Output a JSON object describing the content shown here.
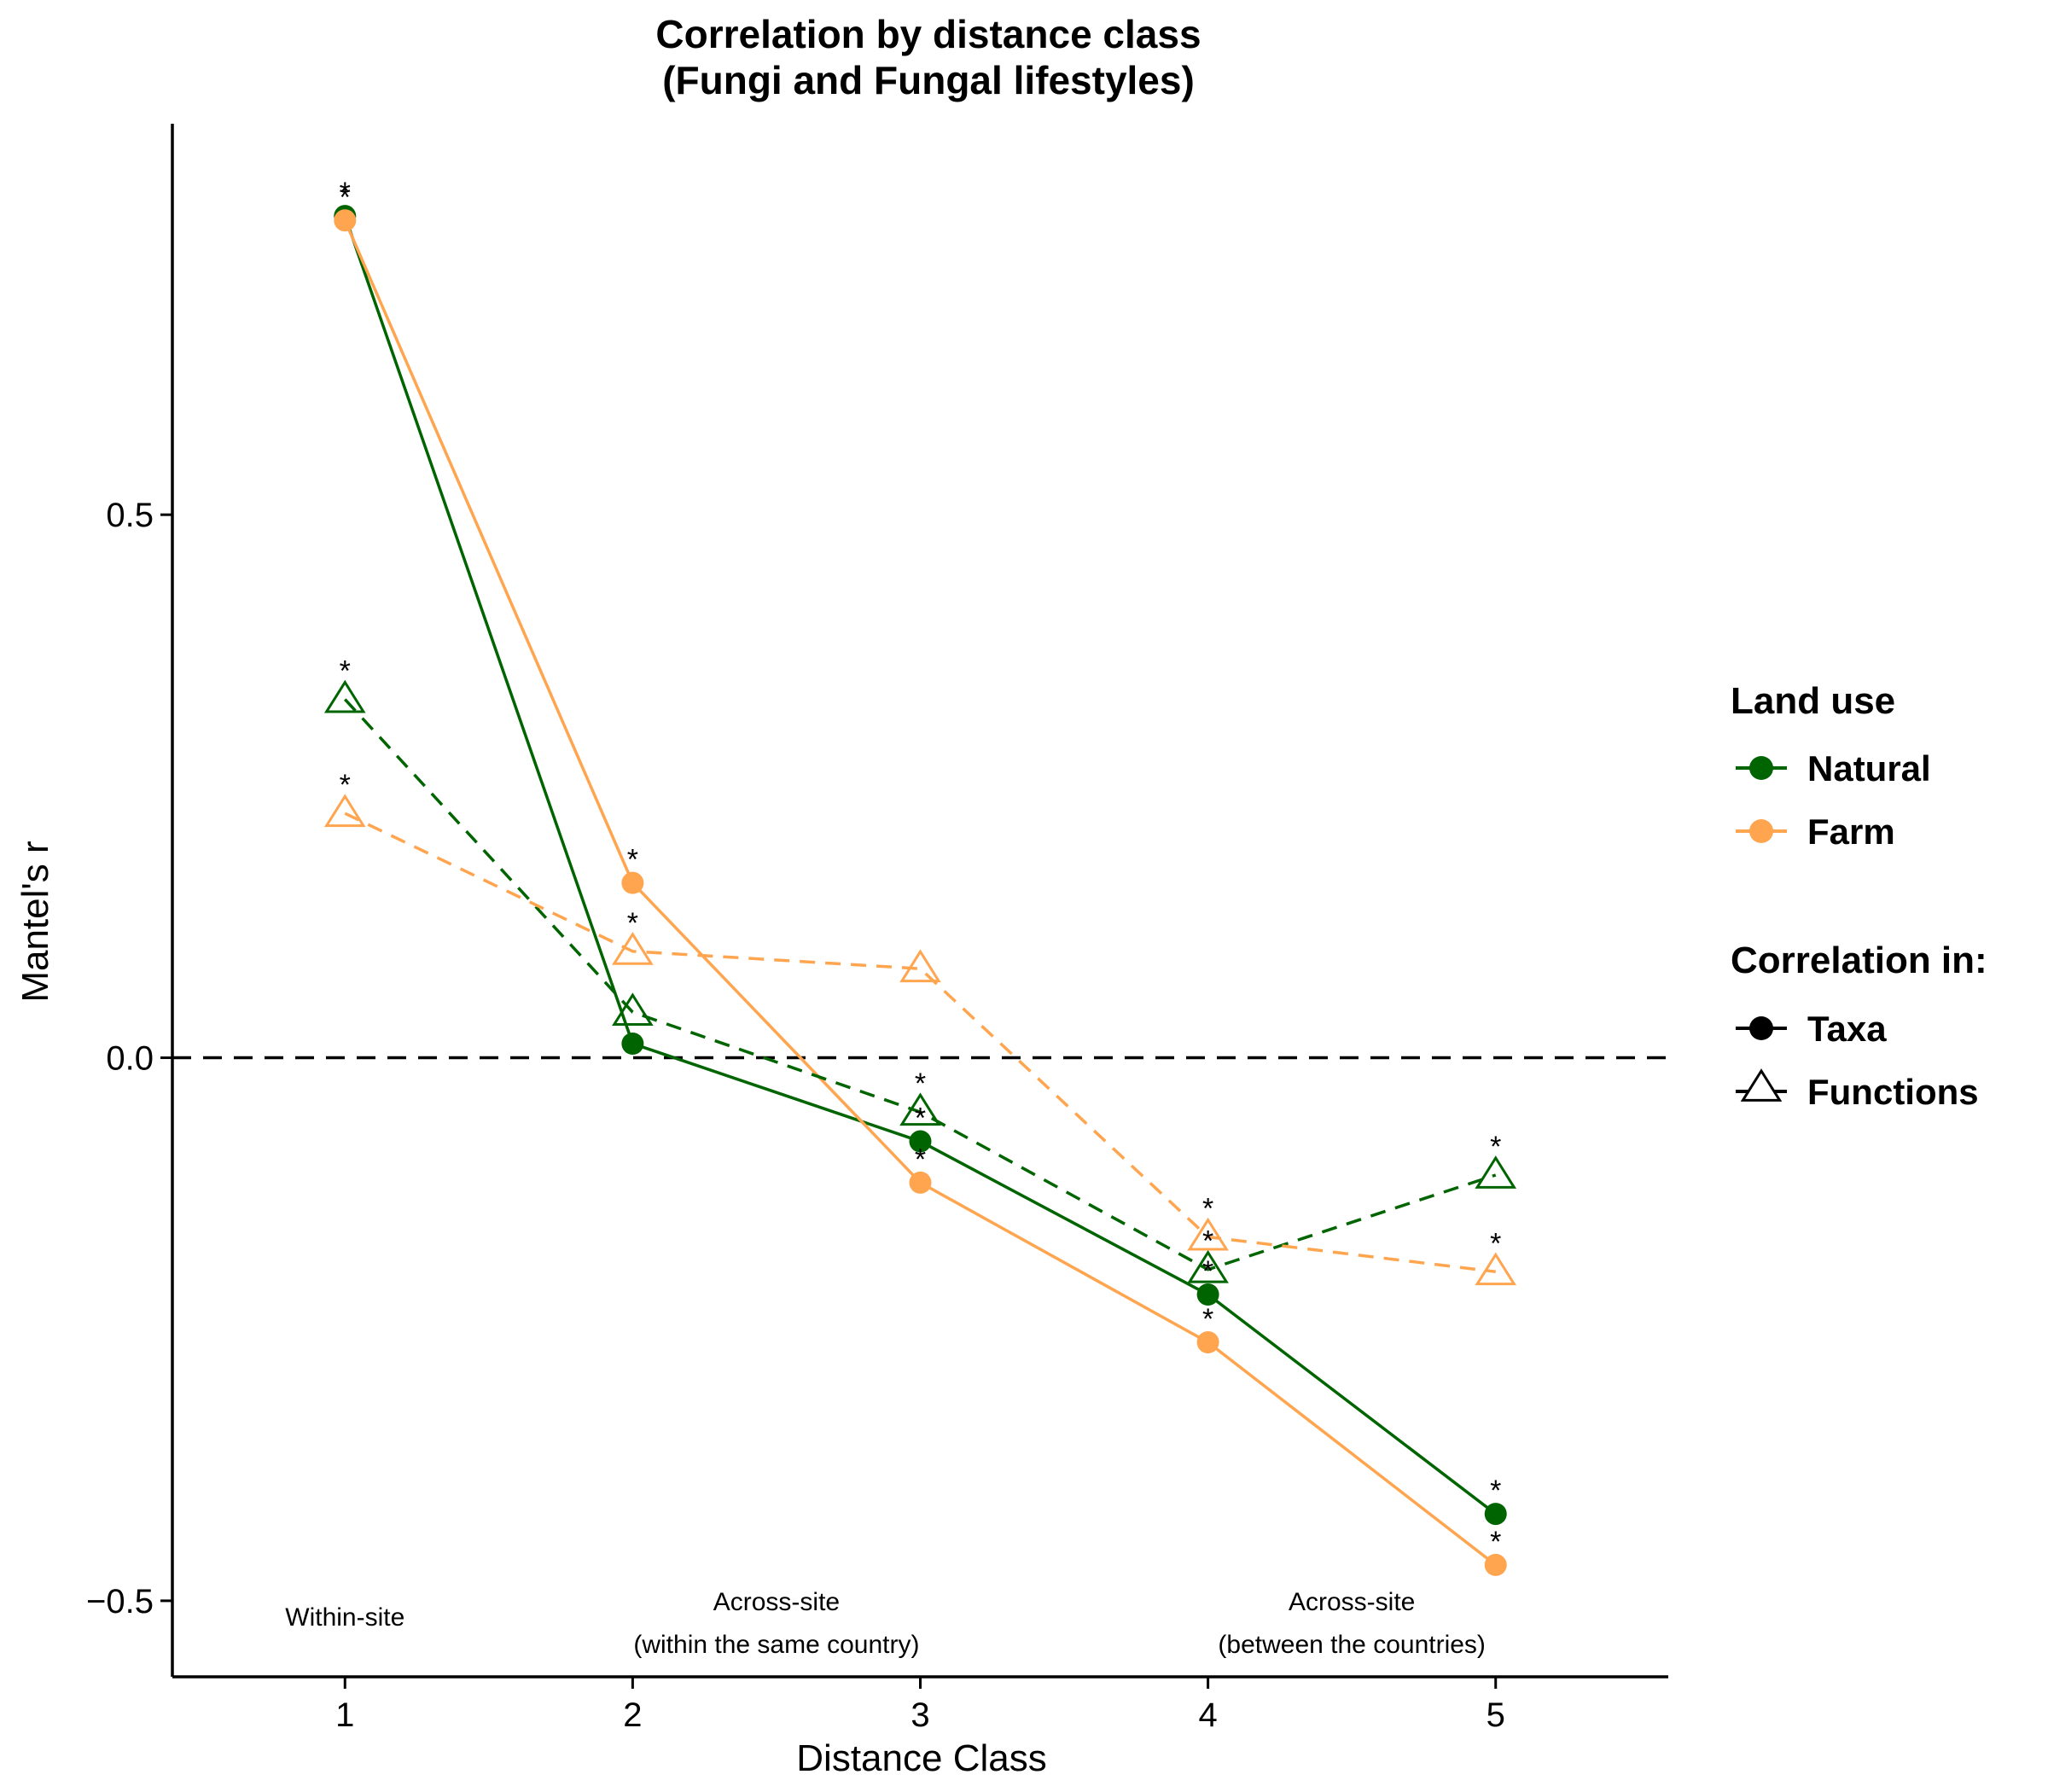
{
  "chart_data": {
    "type": "line",
    "title_line1": "Correlation by distance class",
    "title_line2": "(Fungi and Fungal lifestyles)",
    "xlabel": "Distance Class",
    "ylabel": "Mantel's r",
    "x": [
      1,
      2,
      3,
      4,
      5
    ],
    "xlim": [
      0.4,
      5.6
    ],
    "ylim": [
      -0.57,
      0.86
    ],
    "yticks": [
      -0.5,
      0.0,
      0.5
    ],
    "ytick_labels": [
      "−0.5",
      "0.0",
      "0.5"
    ],
    "xtick_labels": [
      "1",
      "2",
      "3",
      "4",
      "5"
    ],
    "reference_line": {
      "y": 0,
      "style": "dashed"
    },
    "grid": false,
    "series": [
      {
        "name": "Natural / Taxa",
        "land_use": "Natural",
        "correlation": "Taxa",
        "color": "#006400",
        "marker": "circle",
        "linestyle": "solid",
        "values": [
          0.775,
          0.013,
          -0.077,
          -0.218,
          -0.42
        ],
        "significant": [
          true,
          false,
          true,
          true,
          true
        ]
      },
      {
        "name": "Farm / Taxa",
        "land_use": "Farm",
        "correlation": "Taxa",
        "color": "#FFA54F",
        "marker": "circle",
        "linestyle": "solid",
        "values": [
          0.771,
          0.161,
          -0.115,
          -0.262,
          -0.467
        ],
        "significant": [
          true,
          true,
          true,
          true,
          true
        ]
      },
      {
        "name": "Natural / Functions",
        "land_use": "Natural",
        "correlation": "Functions",
        "color": "#006400",
        "marker": "triangle",
        "linestyle": "dashed",
        "values": [
          0.33,
          0.042,
          -0.05,
          -0.195,
          -0.108
        ],
        "significant": [
          true,
          false,
          true,
          true,
          true
        ]
      },
      {
        "name": "Farm / Functions",
        "land_use": "Farm",
        "correlation": "Functions",
        "color": "#FFA54F",
        "marker": "triangle",
        "linestyle": "dashed",
        "values": [
          0.225,
          0.098,
          0.082,
          -0.165,
          -0.197
        ],
        "significant": [
          true,
          true,
          false,
          true,
          true
        ]
      }
    ],
    "annotations": [
      {
        "x": 1,
        "y": -0.515,
        "lines": [
          "Within-site"
        ]
      },
      {
        "x": 2.5,
        "y": -0.515,
        "lines": [
          "Across-site",
          "(within the same country)"
        ]
      },
      {
        "x": 4.5,
        "y": -0.515,
        "lines": [
          "Across-site",
          "(between the countries)"
        ]
      }
    ],
    "significance_mark": "*",
    "legend": {
      "placement": "right",
      "land_use_title": "Land use",
      "land_use_items": [
        {
          "label": "Natural",
          "color": "#006400"
        },
        {
          "label": "Farm",
          "color": "#FFA54F"
        }
      ],
      "correlation_title": "Correlation in:",
      "correlation_items": [
        {
          "label": "Taxa",
          "marker": "circle"
        },
        {
          "label": "Functions",
          "marker": "triangle"
        }
      ]
    }
  }
}
